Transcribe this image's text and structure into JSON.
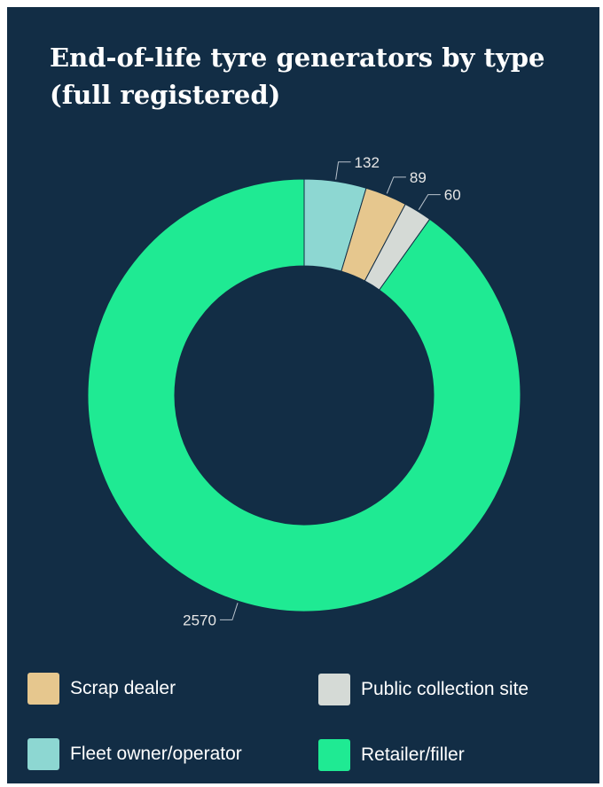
{
  "chart_data": {
    "type": "pie",
    "title": "End-of-life tyre generators by type (full registered)",
    "donut": true,
    "slices": [
      {
        "label": "Fleet owner/operator",
        "value": 132,
        "color": "#8dd7d2"
      },
      {
        "label": "Scrap dealer",
        "value": 89,
        "color": "#e6c78e"
      },
      {
        "label": "Public collection site",
        "value": 60,
        "color": "#d5dad6"
      },
      {
        "label": "Retailer/filler",
        "value": 2570,
        "color": "#1fea93"
      }
    ],
    "legend_position": "bottom",
    "legend": [
      {
        "label": "Scrap dealer",
        "color": "#e6c78e"
      },
      {
        "label": "Public collection site",
        "color": "#d5dad6"
      },
      {
        "label": "Fleet owner/operator",
        "color": "#8dd7d2"
      },
      {
        "label": "Retailer/filler",
        "color": "#1fea93"
      }
    ]
  },
  "colors": {
    "background": "#122d45",
    "text": "#ffffff",
    "leader_line": "#b8c2cc"
  }
}
